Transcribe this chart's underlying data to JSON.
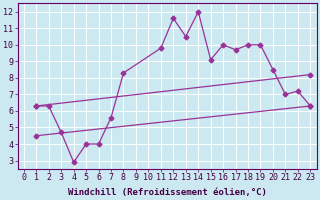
{
  "title": "",
  "xlabel": "Windchill (Refroidissement éolien,°C)",
  "ylabel": "",
  "bg_color": "#cce8f0",
  "line_color": "#993399",
  "grid_color": "#ffffff",
  "xlim": [
    -0.5,
    23.5
  ],
  "ylim": [
    2.5,
    12.5
  ],
  "xticks": [
    0,
    1,
    2,
    3,
    4,
    5,
    6,
    7,
    8,
    9,
    10,
    11,
    12,
    13,
    14,
    15,
    16,
    17,
    18,
    19,
    20,
    21,
    22,
    23
  ],
  "yticks": [
    3,
    4,
    5,
    6,
    7,
    8,
    9,
    10,
    11,
    12
  ],
  "line1_x": [
    1,
    2,
    3,
    4,
    5,
    6,
    7,
    8,
    11,
    12,
    13,
    14,
    15,
    16,
    17,
    18,
    19,
    20,
    21,
    22,
    23
  ],
  "line1_y": [
    6.3,
    6.3,
    4.7,
    2.9,
    4.0,
    4.0,
    5.6,
    8.3,
    9.8,
    11.6,
    10.5,
    12.0,
    9.1,
    10.0,
    9.7,
    10.0,
    10.0,
    8.5,
    7.0,
    7.2,
    6.3
  ],
  "line2_x": [
    1,
    23
  ],
  "line2_y": [
    6.3,
    8.2
  ],
  "line3_x": [
    1,
    23
  ],
  "line3_y": [
    4.5,
    6.3
  ],
  "font_size": 6,
  "xlabel_fontsize": 6.5
}
